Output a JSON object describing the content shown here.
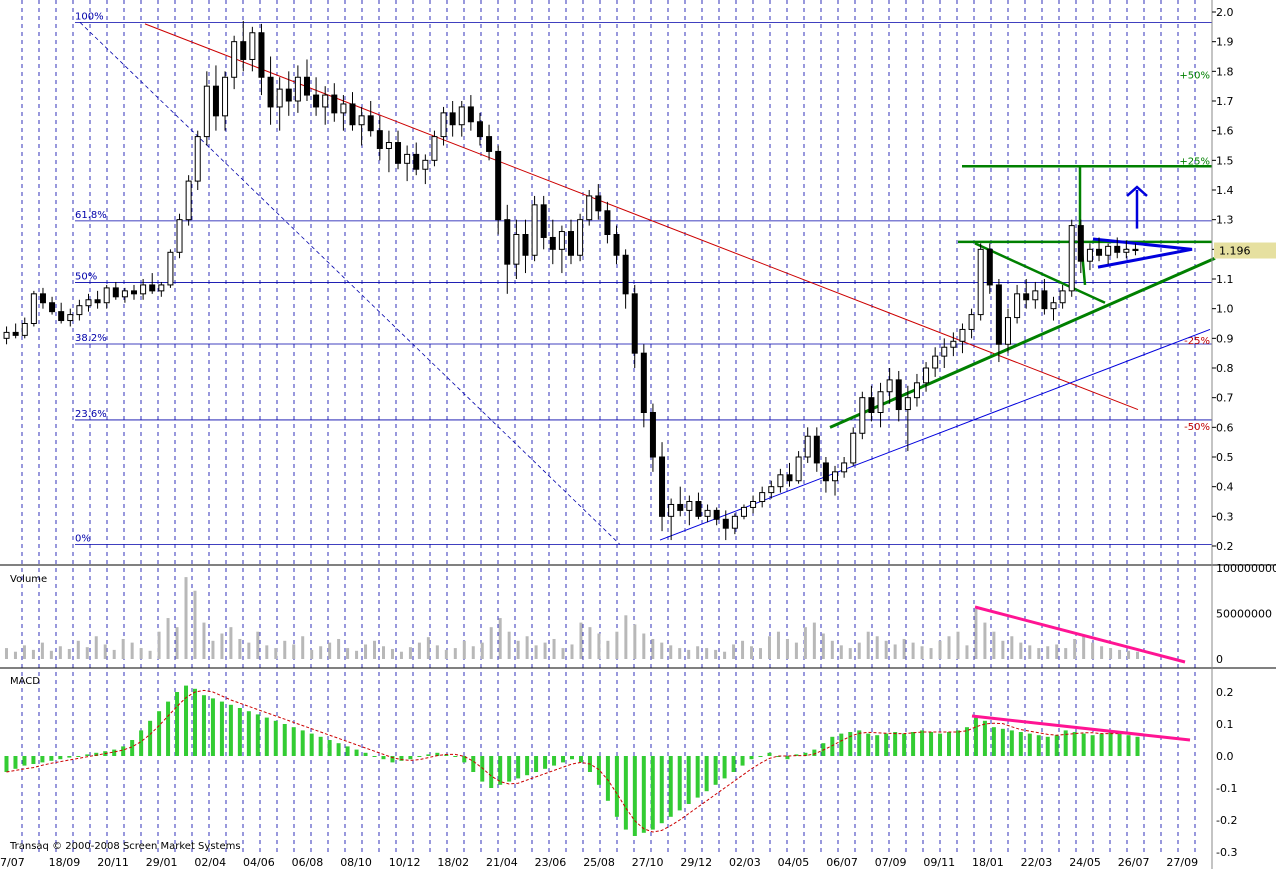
{
  "chart_data": [
    {
      "panel": "price",
      "type": "candlestick",
      "y_ticks": [
        "2.0",
        "1.9",
        "1.8",
        "1.7",
        "1.6",
        "1.5",
        "1.4",
        "1.3",
        "1.2",
        "1.1",
        "1.0",
        "0.9",
        "0.8",
        "0.7",
        "0.6",
        "0.5",
        "0.4",
        "0.3",
        "0.2"
      ],
      "y_min": 0.2,
      "y_max": 2.0,
      "last_price": "1.196",
      "fib_levels": [
        {
          "label": "100%",
          "value": 1.965
        },
        {
          "label": "61.8%",
          "value": 1.296
        },
        {
          "label": "50%",
          "value": 1.088
        },
        {
          "label": "38.2%",
          "value": 0.881
        },
        {
          "label": "23.6%",
          "value": 0.625
        },
        {
          "label": "0%",
          "value": 0.205
        }
      ],
      "target_labels": [
        {
          "label": "+50%",
          "value": 1.79,
          "color": "#008000"
        },
        {
          "label": "+25%",
          "value": 1.5,
          "color": "#008000"
        },
        {
          "label": "-25%",
          "value": 0.895,
          "color": "#c00000"
        },
        {
          "label": "-50%",
          "value": 0.605,
          "color": "#c00000"
        }
      ],
      "ohlc": [
        [
          0.9,
          0.94,
          0.88,
          0.92
        ],
        [
          0.92,
          0.95,
          0.9,
          0.91
        ],
        [
          0.91,
          0.97,
          0.9,
          0.95
        ],
        [
          0.95,
          1.06,
          0.94,
          1.05
        ],
        [
          1.05,
          1.07,
          1.0,
          1.02
        ],
        [
          1.02,
          1.04,
          0.98,
          0.99
        ],
        [
          0.99,
          1.02,
          0.95,
          0.96
        ],
        [
          0.96,
          1.0,
          0.94,
          0.98
        ],
        [
          0.98,
          1.03,
          0.96,
          1.01
        ],
        [
          1.01,
          1.05,
          0.99,
          1.03
        ],
        [
          1.03,
          1.06,
          1.0,
          1.02
        ],
        [
          1.02,
          1.08,
          1.0,
          1.07
        ],
        [
          1.07,
          1.09,
          1.03,
          1.04
        ],
        [
          1.04,
          1.07,
          1.02,
          1.06
        ],
        [
          1.06,
          1.08,
          1.03,
          1.05
        ],
        [
          1.05,
          1.1,
          1.03,
          1.08
        ],
        [
          1.08,
          1.12,
          1.05,
          1.06
        ],
        [
          1.06,
          1.09,
          1.04,
          1.08
        ],
        [
          1.08,
          1.2,
          1.07,
          1.19
        ],
        [
          1.19,
          1.32,
          1.17,
          1.3
        ],
        [
          1.3,
          1.45,
          1.28,
          1.43
        ],
        [
          1.43,
          1.6,
          1.4,
          1.58
        ],
        [
          1.58,
          1.8,
          1.55,
          1.75
        ],
        [
          1.75,
          1.82,
          1.6,
          1.65
        ],
        [
          1.65,
          1.8,
          1.6,
          1.78
        ],
        [
          1.78,
          1.92,
          1.74,
          1.9
        ],
        [
          1.9,
          1.97,
          1.8,
          1.84
        ],
        [
          1.84,
          1.95,
          1.8,
          1.93
        ],
        [
          1.93,
          1.96,
          1.72,
          1.78
        ],
        [
          1.78,
          1.85,
          1.62,
          1.68
        ],
        [
          1.68,
          1.78,
          1.6,
          1.74
        ],
        [
          1.74,
          1.8,
          1.65,
          1.7
        ],
        [
          1.7,
          1.82,
          1.66,
          1.78
        ],
        [
          1.78,
          1.84,
          1.7,
          1.72
        ],
        [
          1.72,
          1.78,
          1.65,
          1.68
        ],
        [
          1.68,
          1.75,
          1.62,
          1.72
        ],
        [
          1.72,
          1.76,
          1.63,
          1.66
        ],
        [
          1.66,
          1.72,
          1.6,
          1.69
        ],
        [
          1.69,
          1.73,
          1.6,
          1.62
        ],
        [
          1.62,
          1.68,
          1.55,
          1.65
        ],
        [
          1.65,
          1.7,
          1.58,
          1.6
        ],
        [
          1.6,
          1.65,
          1.5,
          1.54
        ],
        [
          1.54,
          1.6,
          1.46,
          1.56
        ],
        [
          1.56,
          1.6,
          1.47,
          1.49
        ],
        [
          1.49,
          1.55,
          1.43,
          1.52
        ],
        [
          1.52,
          1.56,
          1.45,
          1.47
        ],
        [
          1.47,
          1.52,
          1.42,
          1.5
        ],
        [
          1.5,
          1.6,
          1.48,
          1.58
        ],
        [
          1.58,
          1.68,
          1.55,
          1.66
        ],
        [
          1.66,
          1.7,
          1.58,
          1.62
        ],
        [
          1.62,
          1.7,
          1.58,
          1.68
        ],
        [
          1.68,
          1.72,
          1.6,
          1.63
        ],
        [
          1.63,
          1.66,
          1.55,
          1.58
        ],
        [
          1.58,
          1.62,
          1.5,
          1.53
        ],
        [
          1.53,
          1.55,
          1.25,
          1.3
        ],
        [
          1.3,
          1.35,
          1.05,
          1.15
        ],
        [
          1.15,
          1.3,
          1.1,
          1.25
        ],
        [
          1.25,
          1.3,
          1.12,
          1.18
        ],
        [
          1.18,
          1.38,
          1.16,
          1.35
        ],
        [
          1.35,
          1.38,
          1.2,
          1.24
        ],
        [
          1.24,
          1.3,
          1.15,
          1.2
        ],
        [
          1.2,
          1.28,
          1.12,
          1.26
        ],
        [
          1.26,
          1.3,
          1.15,
          1.18
        ],
        [
          1.18,
          1.32,
          1.16,
          1.3
        ],
        [
          1.3,
          1.4,
          1.28,
          1.38
        ],
        [
          1.38,
          1.42,
          1.3,
          1.33
        ],
        [
          1.33,
          1.36,
          1.22,
          1.25
        ],
        [
          1.25,
          1.28,
          1.15,
          1.18
        ],
        [
          1.18,
          1.2,
          1.0,
          1.05
        ],
        [
          1.05,
          1.08,
          0.8,
          0.85
        ],
        [
          0.85,
          0.88,
          0.6,
          0.65
        ],
        [
          0.65,
          0.68,
          0.45,
          0.5
        ],
        [
          0.5,
          0.55,
          0.25,
          0.3
        ],
        [
          0.3,
          0.36,
          0.22,
          0.34
        ],
        [
          0.34,
          0.4,
          0.3,
          0.32
        ],
        [
          0.32,
          0.37,
          0.27,
          0.35
        ],
        [
          0.35,
          0.38,
          0.29,
          0.3
        ],
        [
          0.3,
          0.34,
          0.28,
          0.32
        ],
        [
          0.32,
          0.33,
          0.27,
          0.29
        ],
        [
          0.29,
          0.32,
          0.22,
          0.26
        ],
        [
          0.26,
          0.31,
          0.24,
          0.3
        ],
        [
          0.3,
          0.34,
          0.29,
          0.33
        ],
        [
          0.33,
          0.37,
          0.31,
          0.35
        ],
        [
          0.35,
          0.4,
          0.33,
          0.38
        ],
        [
          0.38,
          0.42,
          0.36,
          0.4
        ],
        [
          0.4,
          0.46,
          0.38,
          0.44
        ],
        [
          0.44,
          0.48,
          0.4,
          0.42
        ],
        [
          0.42,
          0.52,
          0.41,
          0.5
        ],
        [
          0.5,
          0.6,
          0.48,
          0.57
        ],
        [
          0.57,
          0.6,
          0.45,
          0.48
        ],
        [
          0.48,
          0.5,
          0.38,
          0.42
        ],
        [
          0.42,
          0.47,
          0.37,
          0.45
        ],
        [
          0.45,
          0.5,
          0.43,
          0.48
        ],
        [
          0.48,
          0.6,
          0.47,
          0.58
        ],
        [
          0.58,
          0.72,
          0.56,
          0.7
        ],
        [
          0.7,
          0.74,
          0.62,
          0.65
        ],
        [
          0.65,
          0.75,
          0.6,
          0.72
        ],
        [
          0.72,
          0.8,
          0.68,
          0.76
        ],
        [
          0.76,
          0.79,
          0.62,
          0.66
        ],
        [
          0.66,
          0.74,
          0.52,
          0.7
        ],
        [
          0.7,
          0.78,
          0.67,
          0.75
        ],
        [
          0.75,
          0.82,
          0.72,
          0.8
        ],
        [
          0.8,
          0.87,
          0.77,
          0.84
        ],
        [
          0.84,
          0.9,
          0.8,
          0.87
        ],
        [
          0.87,
          0.92,
          0.84,
          0.89
        ],
        [
          0.89,
          0.95,
          0.85,
          0.93
        ],
        [
          0.93,
          1.0,
          0.9,
          0.98
        ],
        [
          0.98,
          1.22,
          0.96,
          1.2
        ],
        [
          1.2,
          1.22,
          1.05,
          1.08
        ],
        [
          1.08,
          1.1,
          0.82,
          0.88
        ],
        [
          0.88,
          1.0,
          0.85,
          0.97
        ],
        [
          0.97,
          1.08,
          0.95,
          1.05
        ],
        [
          1.05,
          1.1,
          1.0,
          1.03
        ],
        [
          1.03,
          1.09,
          1.0,
          1.06
        ],
        [
          1.06,
          1.1,
          0.98,
          1.0
        ],
        [
          1.0,
          1.04,
          0.96,
          1.02
        ],
        [
          1.02,
          1.08,
          1.0,
          1.06
        ],
        [
          1.06,
          1.3,
          1.04,
          1.28
        ],
        [
          1.28,
          1.3,
          1.12,
          1.16
        ],
        [
          1.16,
          1.22,
          1.13,
          1.2
        ],
        [
          1.2,
          1.24,
          1.16,
          1.18
        ],
        [
          1.18,
          1.22,
          1.15,
          1.21
        ],
        [
          1.21,
          1.24,
          1.17,
          1.19
        ],
        [
          1.19,
          1.23,
          1.17,
          1.2
        ],
        [
          1.2,
          1.22,
          1.18,
          1.196
        ]
      ]
    },
    {
      "panel": "volume",
      "type": "bar",
      "title": "Volume",
      "y_ticks": [
        "100000000",
        "50000000",
        "0"
      ],
      "y_max": 100000000,
      "values": [
        12,
        8,
        15,
        10,
        18,
        9,
        14,
        11,
        20,
        13,
        25,
        16,
        10,
        22,
        18,
        12,
        9,
        30,
        45,
        35,
        90,
        75,
        40,
        20,
        28,
        35,
        22,
        18,
        30,
        15,
        12,
        20,
        16,
        25,
        10,
        14,
        18,
        22,
        12,
        9,
        16,
        20,
        14,
        11,
        8,
        13,
        18,
        24,
        15,
        10,
        12,
        20,
        14,
        18,
        35,
        45,
        30,
        20,
        25,
        15,
        18,
        22,
        12,
        16,
        40,
        35,
        28,
        20,
        30,
        48,
        38,
        28,
        22,
        18,
        15,
        12,
        10,
        14,
        12,
        10,
        8,
        16,
        20,
        14,
        12,
        25,
        30,
        22,
        18,
        35,
        40,
        28,
        20,
        15,
        12,
        18,
        30,
        25,
        20,
        16,
        22,
        18,
        14,
        12,
        20,
        25,
        30,
        15,
        55,
        40,
        30,
        20,
        25,
        18,
        15,
        12,
        14,
        16,
        12,
        22,
        25,
        18,
        14,
        12,
        10,
        9,
        8
      ]
    },
    {
      "panel": "macd",
      "type": "bar",
      "title": "MACD",
      "y_ticks": [
        "0.2",
        "0.1",
        "0.0",
        "-0.1",
        "-0.2",
        "-0.3"
      ],
      "y_min": -0.3,
      "y_max": 0.2,
      "values": [
        -0.05,
        -0.04,
        -0.03,
        -0.025,
        -0.02,
        -0.015,
        -0.01,
        -0.005,
        0.0,
        0.005,
        0.01,
        0.015,
        0.02,
        0.03,
        0.05,
        0.08,
        0.11,
        0.14,
        0.17,
        0.2,
        0.22,
        0.21,
        0.19,
        0.18,
        0.17,
        0.16,
        0.15,
        0.14,
        0.13,
        0.12,
        0.11,
        0.1,
        0.09,
        0.08,
        0.07,
        0.06,
        0.05,
        0.04,
        0.03,
        0.02,
        0.01,
        0.0,
        -0.01,
        -0.02,
        -0.015,
        -0.01,
        0.0,
        0.005,
        0.01,
        0.005,
        0.0,
        -0.02,
        -0.05,
        -0.08,
        -0.1,
        -0.09,
        -0.08,
        -0.07,
        -0.06,
        -0.05,
        -0.04,
        -0.03,
        -0.02,
        -0.01,
        -0.02,
        -0.05,
        -0.09,
        -0.14,
        -0.19,
        -0.23,
        -0.25,
        -0.24,
        -0.23,
        -0.21,
        -0.19,
        -0.17,
        -0.15,
        -0.13,
        -0.11,
        -0.09,
        -0.07,
        -0.05,
        -0.03,
        -0.01,
        0.0,
        0.01,
        0.0,
        -0.01,
        0.005,
        0.01,
        0.02,
        0.04,
        0.06,
        0.07,
        0.075,
        0.08,
        0.07,
        0.065,
        0.07,
        0.075,
        0.07,
        0.075,
        0.08,
        0.075,
        0.07,
        0.075,
        0.08,
        0.09,
        0.12,
        0.11,
        0.09,
        0.085,
        0.08,
        0.075,
        0.07,
        0.065,
        0.06,
        0.065,
        0.08,
        0.075,
        0.07,
        0.065,
        0.07,
        0.075,
        0.07,
        0.065,
        0.06
      ]
    }
  ],
  "x_labels": [
    "7/07",
    "18/09",
    "20/11",
    "29/01",
    "02/04",
    "04/06",
    "06/08",
    "08/10",
    "10/12",
    "18/02",
    "21/04",
    "23/06",
    "25/08",
    "27/10",
    "29/12",
    "02/03",
    "04/05",
    "06/07",
    "07/09",
    "09/11",
    "18/01",
    "22/03",
    "24/05",
    "26/07",
    "27/09"
  ],
  "copyright": "Transaq © 2000-2008 Screen Market Systems",
  "colors": {
    "grid": "#0000aa",
    "fib": "#0000aa",
    "downtrend": "#cc0000",
    "uptrend_green": "#008000",
    "target_blue": "#0000dd",
    "macd_bars": "#33cc33",
    "volume_bars": "#b8b8b8",
    "divergence": "#ff1493",
    "price_highlight": "#e6e0a0"
  }
}
